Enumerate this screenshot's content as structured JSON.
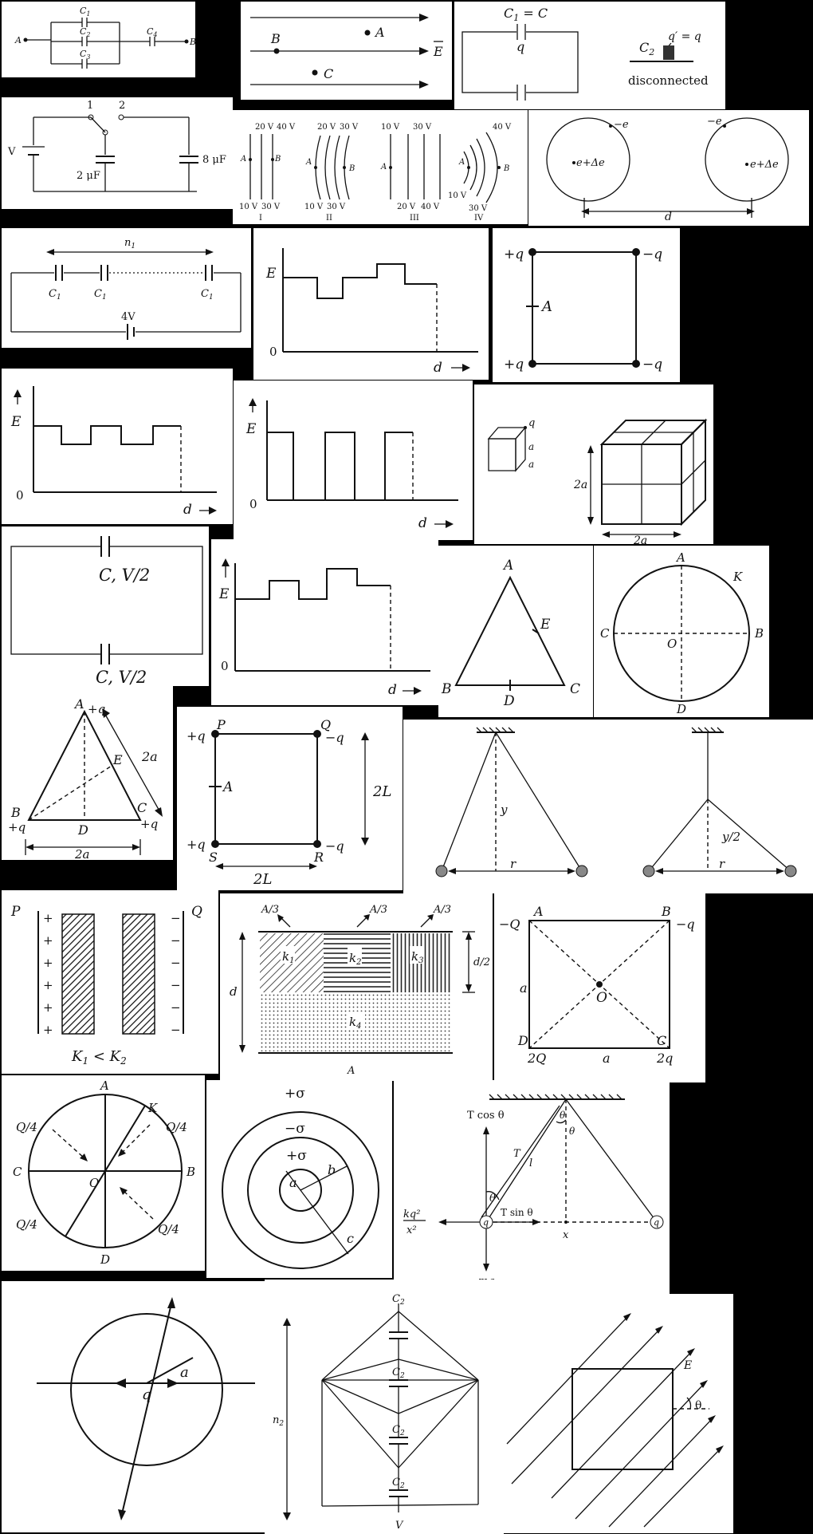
{
  "t1": {
    "c1": "C",
    "c1s": "1",
    "c2": "C",
    "c2s": "2",
    "c3": "C",
    "c3s": "3",
    "c4": "C",
    "c4s": "4",
    "a": "A",
    "b": "B"
  },
  "t2": {
    "a": "A",
    "b": "B",
    "c": "C",
    "e": "E"
  },
  "t3": {
    "c1": "C",
    "c1s": "1",
    "eqc": " = C",
    "q": "q",
    "c2": "C",
    "c2s": "2",
    "qp": "q′ = q",
    "disc": "disconnected"
  },
  "t4": {
    "s1": "1",
    "s2": "2",
    "v": "V",
    "cap1": "2 μF",
    "cap2": "8 μF"
  },
  "t5": {
    "r1": [
      "20 V",
      "40 V"
    ],
    "r2": [
      "20 V",
      "30 V"
    ],
    "r3": [
      "10 V",
      "30 V"
    ],
    "r4": [
      "40 V"
    ],
    "b1": [
      "10 V",
      "30 V"
    ],
    "b2": [
      "10 V",
      "30 V"
    ],
    "b3": [
      "20 V",
      "40 V"
    ],
    "b4": [
      "10 V",
      "30 V"
    ],
    "a": "A",
    "b": "B",
    "n1": "I",
    "n2": "II",
    "n3": "III",
    "n4": "IV"
  },
  "t6": {
    "me": "−e",
    "pe": "e+Δe",
    "d": "d"
  },
  "t7": {
    "n": "n",
    "ns": "1",
    "c": "C",
    "cs": "1",
    "v": "4V"
  },
  "t8": {
    "e": "E",
    "z": "0",
    "d": "d"
  },
  "t9": {
    "tl": "+q",
    "tr": "−q",
    "bl": "+q",
    "br": "−q",
    "a": "A"
  },
  "t10": {
    "e": "E",
    "z": "0",
    "d": "d"
  },
  "t11": {
    "e": "E",
    "z": "0",
    "d": "d"
  },
  "t12": {
    "q": "q",
    "a": "a",
    "a2": "2a"
  },
  "t13": {
    "top": "C, V/2",
    "bot": "C, V/2"
  },
  "t14": {
    "e": "E",
    "z": "0",
    "d": "d"
  },
  "t15": {
    "a": "A",
    "b": "B",
    "c": "C",
    "d": "D",
    "e": "E"
  },
  "t16": {
    "a": "A",
    "b": "B",
    "c": "C",
    "d": "D",
    "k": "K",
    "o": "O"
  },
  "t17": {
    "a": "A",
    "b": "B",
    "c": "C",
    "d": "D",
    "e": "E",
    "q1": "+q",
    "q2": "+q",
    "q3": "+q",
    "s": "2a",
    "w": "2a"
  },
  "t18": {
    "p": "P",
    "q": "Q",
    "r": "R",
    "s": "S",
    "a": "A",
    "tl": "+q",
    "tr": "−q",
    "bl": "+q",
    "br": "−q",
    "h": "2L",
    "w": "2L"
  },
  "t19": {
    "y": "y",
    "r": "r",
    "y2": "y/2"
  },
  "t20": {
    "p": "P",
    "q": "Q",
    "k": "K",
    "k1": "1",
    "lt": " < K",
    "k2": "2",
    "plus": "+",
    "minus": "−"
  },
  "t21": {
    "a3": "A/3",
    "k": "k",
    "k1": "1",
    "k2": "2",
    "k3": "3",
    "k4": "4",
    "d": "d",
    "d2": "d/2",
    "a": "A"
  },
  "t22": {
    "a": "A",
    "b": "B",
    "c": "C",
    "d": "D",
    "o": "O",
    "tl": "−Q",
    "tr": "−q",
    "bl": "2Q",
    "br": "2q",
    "side": "a",
    "bot": "a"
  },
  "t23": {
    "a": "A",
    "b": "B",
    "c": "C",
    "d": "D",
    "k": "K",
    "o": "O",
    "q4": "Q/4"
  },
  "t24": {
    "ps": "+σ",
    "ms": "−σ",
    "ps2": "+σ",
    "a": "a",
    "b": "b",
    "c": "c"
  },
  "t25": {
    "tcos": "T cos θ",
    "tsin": "T sin θ",
    "t": "T",
    "l": "l",
    "th": "θ",
    "kq": "kq²",
    "x2": "x²",
    "x": "x",
    "q": "q",
    "mg": "mg"
  },
  "t26": {
    "q": "q",
    "a": "a"
  },
  "t27": {
    "n": "n",
    "ns": "2",
    "c": "C",
    "cs": "2",
    "v": "V"
  },
  "t28": {
    "e": "E",
    "th": "θ"
  }
}
